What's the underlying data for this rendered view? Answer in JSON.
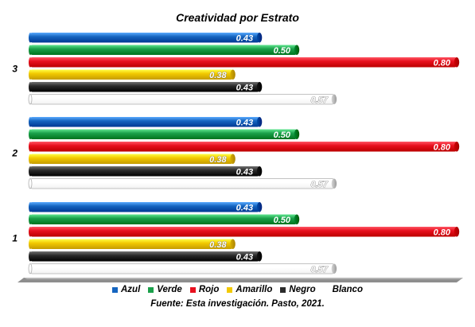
{
  "chart_data": {
    "type": "bar",
    "orientation": "horizontal",
    "title": "Creatividad por Estrato",
    "categories": [
      "3",
      "2",
      "1"
    ],
    "series": [
      {
        "name": "Azul",
        "color": "#1565c0",
        "values": [
          0.43,
          0.43,
          0.43
        ],
        "labels": [
          "0.43",
          "0.43",
          "0.43"
        ]
      },
      {
        "name": "Verde",
        "color": "#1aa04a",
        "values": [
          0.5,
          0.5,
          0.5
        ],
        "labels": [
          "0.50",
          "0.50",
          "0.50"
        ]
      },
      {
        "name": "Rojo",
        "color": "#e8101e",
        "values": [
          0.8,
          0.8,
          0.8
        ],
        "labels": [
          "0.80",
          "0.80",
          "0.80"
        ]
      },
      {
        "name": "Amarillo",
        "color": "#f2c900",
        "values": [
          0.38,
          0.38,
          0.38
        ],
        "labels": [
          "0.38",
          "0.38",
          "0.38"
        ]
      },
      {
        "name": "Negro",
        "color": "#2b2b2b",
        "values": [
          0.43,
          0.43,
          0.43
        ],
        "labels": [
          "0.43",
          "0.43",
          "0.43"
        ]
      },
      {
        "name": "Blanco",
        "color": "#ffffff",
        "values": [
          0.57,
          0.57,
          0.57
        ],
        "labels": [
          "0.57",
          "0.57",
          "0.57"
        ]
      }
    ],
    "xlim": [
      0,
      0.8
    ],
    "legend_position": "bottom",
    "grid": false,
    "source": "Fuente: Esta investigación. Pasto, 2021."
  }
}
